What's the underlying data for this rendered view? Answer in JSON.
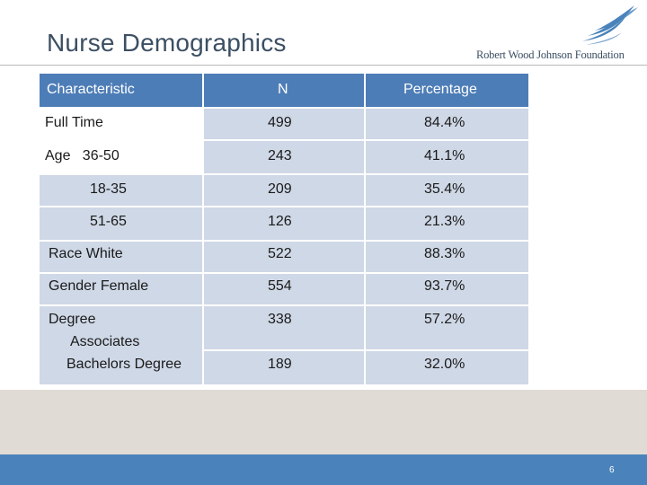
{
  "slide": {
    "title": "Nurse Demographics",
    "page_number": "6"
  },
  "logo": {
    "text": "Robert Wood Johnson Foundation"
  },
  "table": {
    "headers": {
      "characteristic": "Characteristic",
      "n": "N",
      "percentage": "Percentage"
    },
    "rows": [
      {
        "label": "Full Time",
        "n": "499",
        "pct": "84.4%"
      },
      {
        "label": "Age   36-50",
        "n": "243",
        "pct": "41.1%"
      },
      {
        "label": "18-35",
        "n": "209",
        "pct": "35.4%"
      },
      {
        "label": "51-65",
        "n": "126",
        "pct": "21.3%"
      },
      {
        "label": "Race White",
        "n": "522",
        "pct": "88.3%"
      },
      {
        "label": "Gender Female",
        "n": "554",
        "pct": "93.7%"
      },
      {
        "label_lines": [
          "Degree",
          "Associates",
          "Bachelors Degree"
        ],
        "n": [
          "338",
          "189"
        ],
        "pct": [
          "57.2%",
          "32.0%"
        ]
      }
    ]
  },
  "colors": {
    "header": "#4d7db7",
    "row": "#cfd8e6",
    "footer_band": "#e0dbd5",
    "footer_bar": "#4a83bb",
    "title": "#3c4f63"
  }
}
